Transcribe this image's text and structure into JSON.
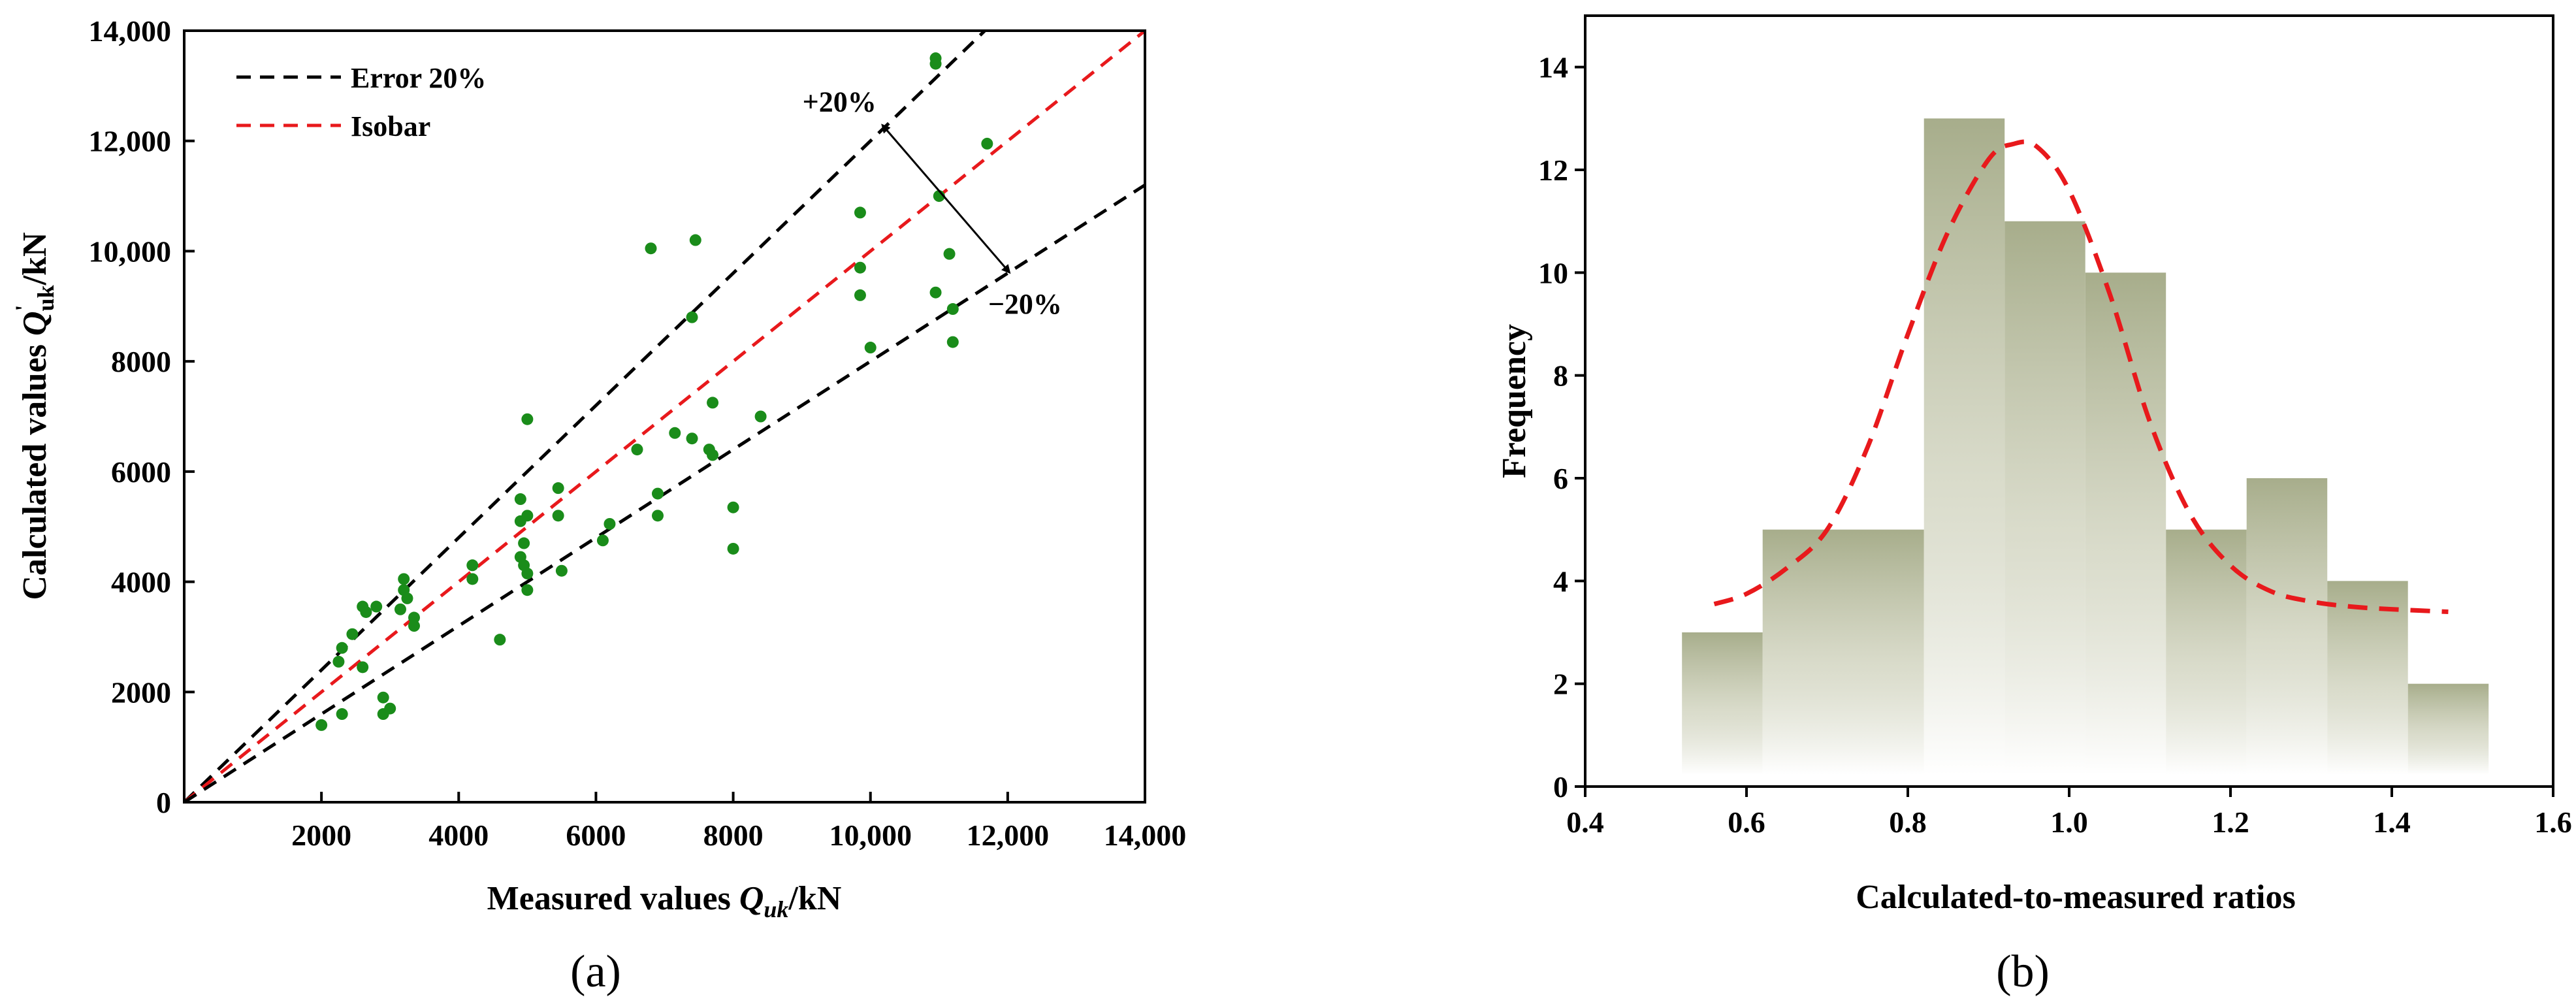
{
  "panels": {
    "a": "(a)",
    "b": "(b)"
  },
  "chart_data": [
    {
      "type": "scatter",
      "panel": "a",
      "xlabel": "Measured values ",
      "xlabel_symbol": "Q",
      "xlabel_sub": "uk",
      "xlabel_unit": "/kN",
      "ylabel": "Calculated values ",
      "ylabel_symbol": "Q",
      "ylabel_prime": "'",
      "ylabel_sub": "uk",
      "ylabel_unit": "/kN",
      "xlim": [
        0,
        14000
      ],
      "ylim": [
        0,
        14000
      ],
      "x_ticks": [
        2000,
        4000,
        6000,
        8000,
        10000,
        12000,
        14000
      ],
      "x_tick_labels": [
        "2000",
        "4000",
        "6000",
        "8000",
        "10,000",
        "12,000",
        "14,000"
      ],
      "y_ticks": [
        0,
        2000,
        4000,
        6000,
        8000,
        10000,
        12000,
        14000
      ],
      "y_tick_labels": [
        "0",
        "2000",
        "4000",
        "6000",
        "8000",
        "10,000",
        "12,000",
        "14,000"
      ],
      "legend": [
        {
          "label": "Error 20%",
          "color": "#000000",
          "style": "dashed"
        },
        {
          "label": "Isobar",
          "color": "#e8191c",
          "style": "dashed"
        }
      ],
      "lines": [
        {
          "name": "upper-20",
          "slope": 1.2,
          "color": "#000000"
        },
        {
          "name": "isobar",
          "slope": 1.0,
          "color": "#e8191c"
        },
        {
          "name": "lower-20",
          "slope": 0.8,
          "color": "#000000"
        }
      ],
      "annotations": {
        "plus": "+20%",
        "minus": "−20%",
        "arrow_from": [
          10200,
          12250
        ],
        "arrow_to": [
          12000,
          9650
        ]
      },
      "point_color": "#1a8c1a",
      "points": [
        [
          2000,
          1400
        ],
        [
          2300,
          1600
        ],
        [
          2250,
          2550
        ],
        [
          2300,
          2800
        ],
        [
          2450,
          3050
        ],
        [
          2600,
          3550
        ],
        [
          2650,
          3450
        ],
        [
          2600,
          2450
        ],
        [
          2800,
          3550
        ],
        [
          2900,
          1900
        ],
        [
          2900,
          1600
        ],
        [
          3000,
          1700
        ],
        [
          3150,
          3500
        ],
        [
          3200,
          4050
        ],
        [
          3200,
          3850
        ],
        [
          3250,
          3700
        ],
        [
          3350,
          3350
        ],
        [
          3350,
          3200
        ],
        [
          4200,
          4300
        ],
        [
          4200,
          4050
        ],
        [
          4600,
          2950
        ],
        [
          4900,
          5500
        ],
        [
          4900,
          5100
        ],
        [
          4950,
          4700
        ],
        [
          4900,
          4450
        ],
        [
          4950,
          4300
        ],
        [
          5000,
          4150
        ],
        [
          5000,
          3850
        ],
        [
          5000,
          5200
        ],
        [
          5000,
          6950
        ],
        [
          5450,
          5700
        ],
        [
          5450,
          5200
        ],
        [
          5500,
          4200
        ],
        [
          6100,
          4750
        ],
        [
          6200,
          5050
        ],
        [
          6600,
          6400
        ],
        [
          6800,
          10050
        ],
        [
          7150,
          6700
        ],
        [
          7400,
          6600
        ],
        [
          7450,
          10200
        ],
        [
          7400,
          8800
        ],
        [
          6900,
          5600
        ],
        [
          6900,
          5200
        ],
        [
          7650,
          6400
        ],
        [
          7700,
          7250
        ],
        [
          7700,
          6300
        ],
        [
          8000,
          5350
        ],
        [
          8000,
          4600
        ],
        [
          8400,
          7000
        ],
        [
          9850,
          10700
        ],
        [
          9850,
          9700
        ],
        [
          9850,
          9200
        ],
        [
          10000,
          8250
        ],
        [
          10950,
          13500
        ],
        [
          10950,
          13400
        ],
        [
          10950,
          9250
        ],
        [
          11000,
          11000
        ],
        [
          11150,
          9950
        ],
        [
          11200,
          8950
        ],
        [
          11200,
          8350
        ],
        [
          11700,
          11950
        ]
      ]
    },
    {
      "type": "histogram",
      "panel": "b",
      "xlabel": "Calculated-to-measured ratios",
      "ylabel": "Frequency",
      "xlim": [
        0.4,
        1.6
      ],
      "ylim": [
        0,
        15
      ],
      "x_ticks": [
        0.4,
        0.6,
        0.8,
        1.0,
        1.2,
        1.4,
        1.6
      ],
      "x_tick_labels": [
        "0.4",
        "0.6",
        "0.8",
        "1.0",
        "1.2",
        "1.4",
        "1.6"
      ],
      "y_ticks": [
        0,
        2,
        4,
        6,
        8,
        10,
        12,
        14
      ],
      "y_tick_labels": [
        "0",
        "2",
        "4",
        "6",
        "8",
        "10",
        "12",
        "14"
      ],
      "bar_color": "#a7ad8b",
      "bins": [
        {
          "left": 0.52,
          "right": 0.62,
          "count": 3
        },
        {
          "left": 0.62,
          "right": 0.82,
          "count": 5
        },
        {
          "left": 0.82,
          "right": 0.92,
          "count": 13
        },
        {
          "left": 0.92,
          "right": 1.02,
          "count": 11
        },
        {
          "left": 1.02,
          "right": 1.12,
          "count": 10
        },
        {
          "left": 1.12,
          "right": 1.22,
          "count": 5
        },
        {
          "left": 1.22,
          "right": 1.32,
          "count": 6
        },
        {
          "left": 1.32,
          "right": 1.42,
          "count": 4
        },
        {
          "left": 1.42,
          "right": 1.52,
          "count": 2
        }
      ],
      "fit_curve": {
        "color": "#e8191c",
        "style": "dashed",
        "x": [
          0.56,
          0.6,
          0.65,
          0.7,
          0.75,
          0.8,
          0.85,
          0.9,
          0.93,
          0.96,
          1.0,
          1.05,
          1.1,
          1.15,
          1.2,
          1.25,
          1.3,
          1.35,
          1.4,
          1.47
        ],
        "y": [
          3.55,
          3.75,
          4.25,
          5.0,
          6.6,
          8.8,
          10.8,
          12.2,
          12.5,
          12.45,
          11.6,
          9.6,
          7.1,
          5.3,
          4.3,
          3.8,
          3.6,
          3.5,
          3.45,
          3.4
        ]
      }
    }
  ]
}
